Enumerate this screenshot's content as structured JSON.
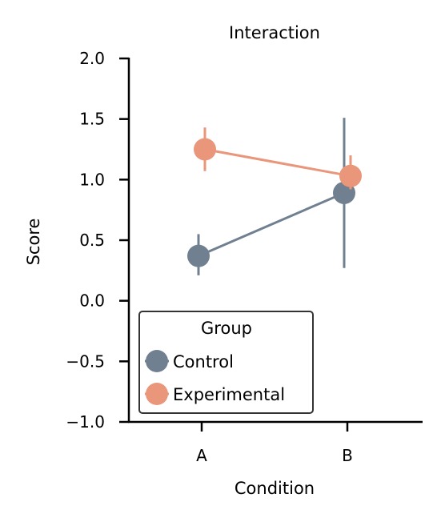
{
  "chart_data": {
    "type": "line",
    "title": "Interaction",
    "xlabel": "Condition",
    "ylabel": "Score",
    "categories": [
      "A",
      "B"
    ],
    "ylim": [
      -1.0,
      2.0
    ],
    "yticks": [
      "−1.0",
      "−0.5",
      "0.0",
      "0.5",
      "1.0",
      "1.5",
      "2.0"
    ],
    "ytick_values": [
      -1.0,
      -0.5,
      0.0,
      0.5,
      1.0,
      1.5,
      2.0
    ],
    "grid": false,
    "legend": {
      "title": "Group",
      "placement": "lower-left"
    },
    "series": [
      {
        "name": "Control",
        "color": "#708090",
        "values": [
          0.37,
          0.89
        ],
        "err_low": [
          0.21,
          0.27
        ],
        "err_high": [
          0.55,
          1.51
        ]
      },
      {
        "name": "Experimental",
        "color": "#E9967A",
        "values": [
          1.25,
          1.03
        ],
        "err_low": [
          1.07,
          0.92
        ],
        "err_high": [
          1.43,
          1.2
        ]
      }
    ]
  }
}
